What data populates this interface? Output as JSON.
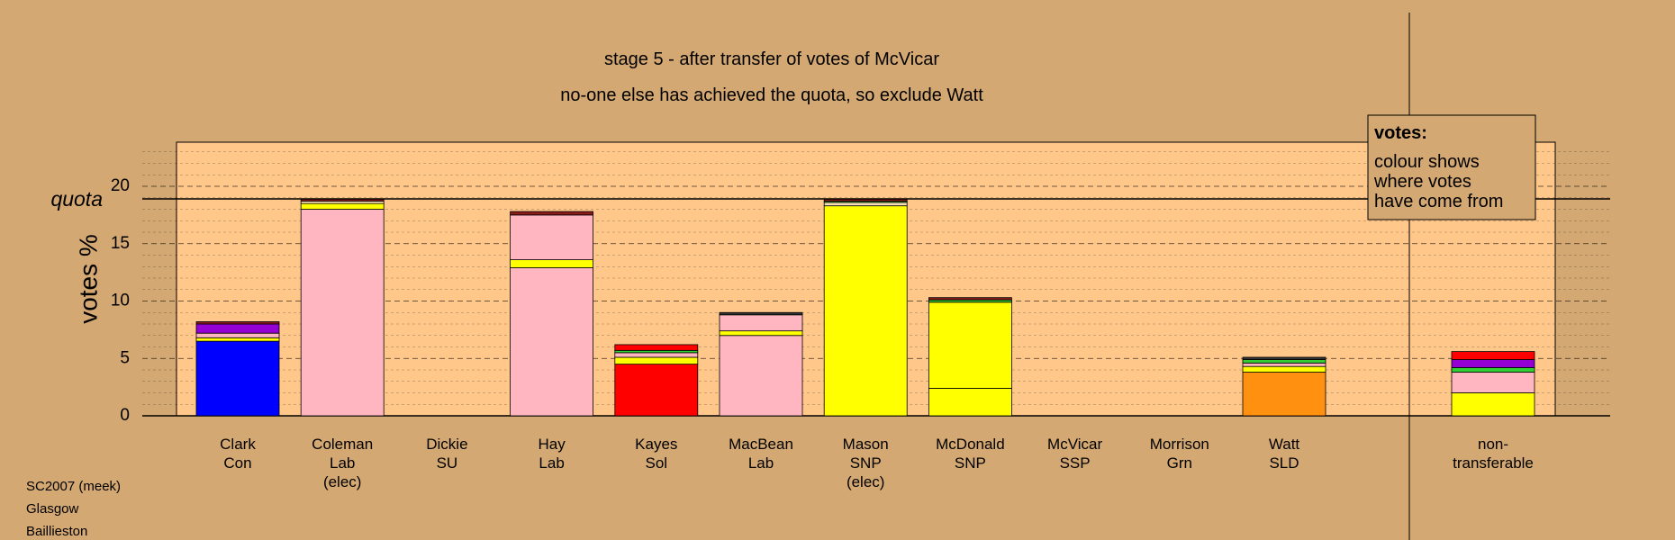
{
  "chart_data": {
    "type": "bar",
    "title_line1": "stage 5 - after transfer of votes of McVicar",
    "title_line2": "no-one else has achieved the quota, so exclude Watt",
    "ylabel": "votes %",
    "quota_label": "quota",
    "quota": 18.9,
    "ylim": [
      0,
      23
    ],
    "yticks": [
      "0",
      "5",
      "10",
      "15",
      "20"
    ],
    "ytick_values": [
      0,
      5,
      10,
      15,
      20
    ],
    "legend": {
      "title": "votes:",
      "lines": [
        "colour shows",
        "where votes",
        "have come from"
      ]
    },
    "candidates": [
      {
        "name": "Clark",
        "party": "Con",
        "extra": "",
        "segments": [
          {
            "value": 6.5,
            "color": "#0000FF"
          },
          {
            "value": 0.3,
            "color": "#FFFF00"
          },
          {
            "value": 0.4,
            "color": "#FFB6C1"
          },
          {
            "value": 0.8,
            "color": "#9400D3"
          },
          {
            "value": 0.2,
            "color": "#8B1A1A"
          }
        ]
      },
      {
        "name": "Coleman",
        "party": "Lab",
        "extra": "(elec)",
        "segments": [
          {
            "value": 18.0,
            "color": "#FFB6C1"
          },
          {
            "value": 0.5,
            "color": "#FFFF00"
          },
          {
            "value": 0.2,
            "color": "#F5DEB3"
          },
          {
            "value": 0.2,
            "color": "#8B1A1A"
          }
        ]
      },
      {
        "name": "Dickie",
        "party": "SU",
        "extra": "",
        "segments": []
      },
      {
        "name": "Hay",
        "party": "Lab",
        "extra": "",
        "segments": [
          {
            "value": 12.9,
            "color": "#FFB6C1"
          },
          {
            "value": 0.7,
            "color": "#FFFF00"
          },
          {
            "value": 3.9,
            "color": "#FFB6C1"
          },
          {
            "value": 0.3,
            "color": "#8B1A1A"
          }
        ]
      },
      {
        "name": "Kayes",
        "party": "Sol",
        "extra": "",
        "segments": [
          {
            "value": 4.5,
            "color": "#FF0000"
          },
          {
            "value": 0.6,
            "color": "#FFFF00"
          },
          {
            "value": 0.4,
            "color": "#FFB6C1"
          },
          {
            "value": 0.2,
            "color": "#32CD32"
          },
          {
            "value": 0.5,
            "color": "#FF0000"
          }
        ]
      },
      {
        "name": "MacBean",
        "party": "Lab",
        "extra": "",
        "segments": [
          {
            "value": 7.0,
            "color": "#FFB6C1"
          },
          {
            "value": 0.4,
            "color": "#FFFF00"
          },
          {
            "value": 1.4,
            "color": "#FFB6C1"
          },
          {
            "value": 0.2,
            "color": "#333333"
          }
        ]
      },
      {
        "name": "Mason",
        "party": "SNP",
        "extra": "(elec)",
        "segments": [
          {
            "value": 18.3,
            "color": "#FFFF00"
          },
          {
            "value": 0.3,
            "color": "#F5DEB3"
          },
          {
            "value": 0.1,
            "color": "#32CD32"
          },
          {
            "value": 0.2,
            "color": "#8B1A1A"
          }
        ]
      },
      {
        "name": "McDonald",
        "party": "SNP",
        "extra": "",
        "segments": [
          {
            "value": 2.4,
            "color": "#FFFF00"
          },
          {
            "value": 7.5,
            "color": "#FFFF00"
          },
          {
            "value": 0.2,
            "color": "#32CD32"
          },
          {
            "value": 0.2,
            "color": "#8B1A1A"
          }
        ]
      },
      {
        "name": "McVicar",
        "party": "SSP",
        "extra": "",
        "segments": []
      },
      {
        "name": "Morrison",
        "party": "Grn",
        "extra": "",
        "segments": []
      },
      {
        "name": "Watt",
        "party": "SLD",
        "extra": "",
        "segments": [
          {
            "value": 3.8,
            "color": "#FF9010"
          },
          {
            "value": 0.5,
            "color": "#FFFF00"
          },
          {
            "value": 0.3,
            "color": "#FFB6C1"
          },
          {
            "value": 0.3,
            "color": "#32CD32"
          },
          {
            "value": 0.2,
            "color": "#333333"
          }
        ]
      }
    ],
    "non_transferable": {
      "name": "non-",
      "party": "transferable",
      "extra": "",
      "segments": [
        {
          "value": 2.0,
          "color": "#FFFF00"
        },
        {
          "value": 1.8,
          "color": "#FFB6C1"
        },
        {
          "value": 0.4,
          "color": "#32CD32"
        },
        {
          "value": 0.7,
          "color": "#9400D3"
        },
        {
          "value": 0.7,
          "color": "#FF0000"
        }
      ]
    },
    "colors": {
      "background": "#D4A872",
      "plot_background": "#FFC88A",
      "legend_background": "#D4A872"
    }
  },
  "footer": {
    "line1": "SC2007 (meek)",
    "line2": "Glasgow",
    "line3": "Baillieston"
  }
}
